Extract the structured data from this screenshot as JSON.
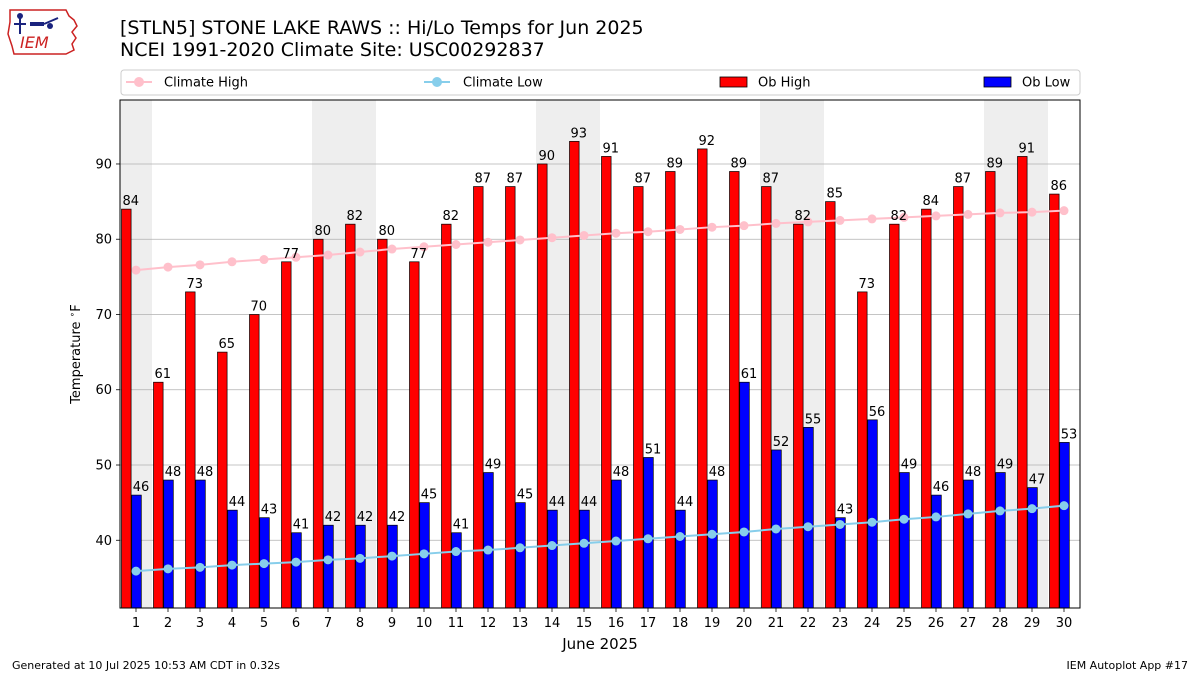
{
  "header": {
    "title_line1": "[STLN5] STONE LAKE RAWS :: Hi/Lo Temps for Jun 2025",
    "title_line2": "NCEI 1991-2020 Climate Site: USC00292837",
    "logo_text": "IEM"
  },
  "footer": {
    "generated": "Generated at 10 Jul 2025 10:53 AM CDT in 0.32s",
    "app": "IEM Autoplot App #17"
  },
  "colors": {
    "ob_high": "#ff0000",
    "ob_low": "#0000ff",
    "climate_high": "#ffc0cb",
    "climate_low": "#87ceeb",
    "weekend_shade": "#eeeeee",
    "logo": "#cc2222"
  },
  "chart_data": {
    "type": "bar",
    "title": "[STLN5] STONE LAKE RAWS :: Hi/Lo Temps for Jun 2025",
    "subtitle": "NCEI 1991-2020 Climate Site: USC00292837",
    "xlabel": "June 2025",
    "ylabel": "Temperature $^\\circ$F",
    "ylabel_text": "Temperature ",
    "ylabel_deg": "∘",
    "ylabel_unit": "F",
    "ylim": [
      31,
      98.5
    ],
    "yticks": [
      40,
      50,
      60,
      70,
      80,
      90
    ],
    "grid": "horizontal",
    "legend_placement": "top",
    "categories": [
      "1",
      "2",
      "3",
      "4",
      "5",
      "6",
      "7",
      "8",
      "9",
      "10",
      "11",
      "12",
      "13",
      "14",
      "15",
      "16",
      "17",
      "18",
      "19",
      "20",
      "21",
      "22",
      "23",
      "24",
      "25",
      "26",
      "27",
      "28",
      "29",
      "30"
    ],
    "shaded_days": [
      1,
      7,
      8,
      14,
      15,
      21,
      22,
      28,
      29
    ],
    "series": [
      {
        "name": "Ob High",
        "kind": "bar",
        "values": [
          84,
          61,
          73,
          65,
          70,
          77,
          80,
          82,
          80,
          77,
          82,
          87,
          87,
          90,
          93,
          91,
          87,
          89,
          92,
          89,
          87,
          82,
          85,
          73,
          82,
          84,
          87,
          89,
          91,
          86
        ]
      },
      {
        "name": "Ob Low",
        "kind": "bar",
        "values": [
          46,
          48,
          48,
          44,
          43,
          41,
          42,
          42,
          42,
          45,
          41,
          49,
          45,
          44,
          44,
          48,
          51,
          44,
          48,
          61,
          52,
          55,
          43,
          56,
          49,
          46,
          48,
          49,
          47,
          53
        ]
      },
      {
        "name": "Climate High",
        "kind": "line",
        "values": [
          75.9,
          76.3,
          76.6,
          77.0,
          77.3,
          77.6,
          77.9,
          78.3,
          78.7,
          79.0,
          79.3,
          79.6,
          79.9,
          80.2,
          80.5,
          80.8,
          81.0,
          81.3,
          81.6,
          81.8,
          82.1,
          82.3,
          82.5,
          82.7,
          82.9,
          83.1,
          83.3,
          83.5,
          83.6,
          83.8
        ]
      },
      {
        "name": "Climate Low",
        "kind": "line",
        "values": [
          35.9,
          36.2,
          36.4,
          36.7,
          36.9,
          37.1,
          37.4,
          37.6,
          37.9,
          38.2,
          38.5,
          38.7,
          39.0,
          39.3,
          39.6,
          39.9,
          40.2,
          40.5,
          40.8,
          41.1,
          41.5,
          41.8,
          42.1,
          42.4,
          42.8,
          43.1,
          43.5,
          43.9,
          44.2,
          44.6
        ]
      }
    ]
  }
}
